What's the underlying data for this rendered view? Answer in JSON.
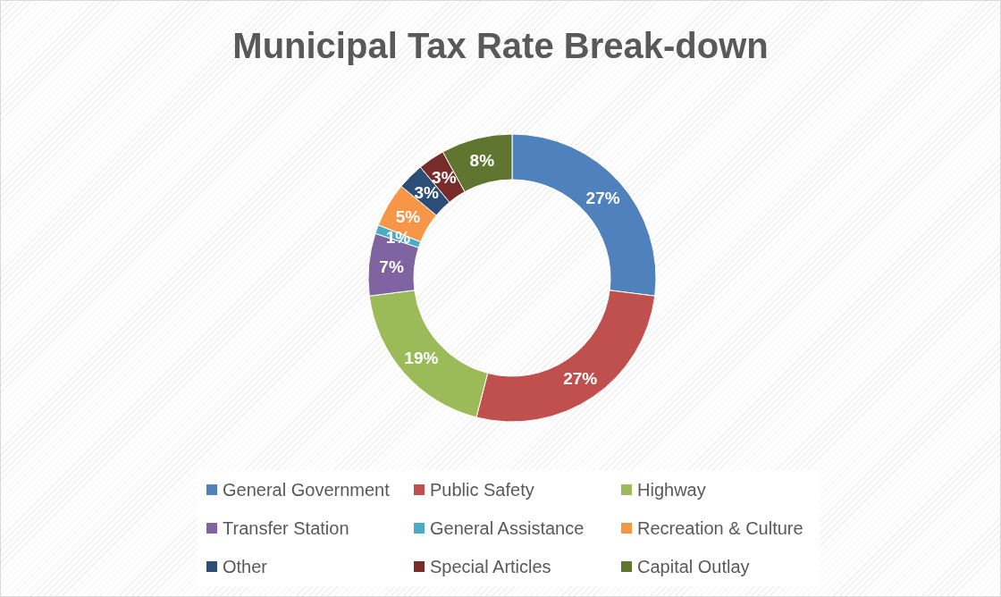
{
  "chart_data": {
    "type": "donut",
    "title": "Municipal Tax Rate Break-down",
    "categories": [
      "General Government",
      "Public Safety",
      "Highway",
      "Transfer Station",
      "General Assistance",
      "Recreation & Culture",
      "Other",
      "Special Articles",
      "Capital Outlay"
    ],
    "values": [
      27,
      27,
      19,
      7,
      1,
      5,
      3,
      3,
      8
    ],
    "colors": [
      "#4f81bd",
      "#c0504d",
      "#9bbb59",
      "#8064a2",
      "#4bacc6",
      "#f79646",
      "#2c4d75",
      "#772c2a",
      "#5f7530"
    ],
    "value_labels": [
      "27%",
      "27%",
      "19%",
      "7%",
      "1%",
      "5%",
      "3%",
      "3%",
      "8%"
    ],
    "legend": "bottom"
  }
}
